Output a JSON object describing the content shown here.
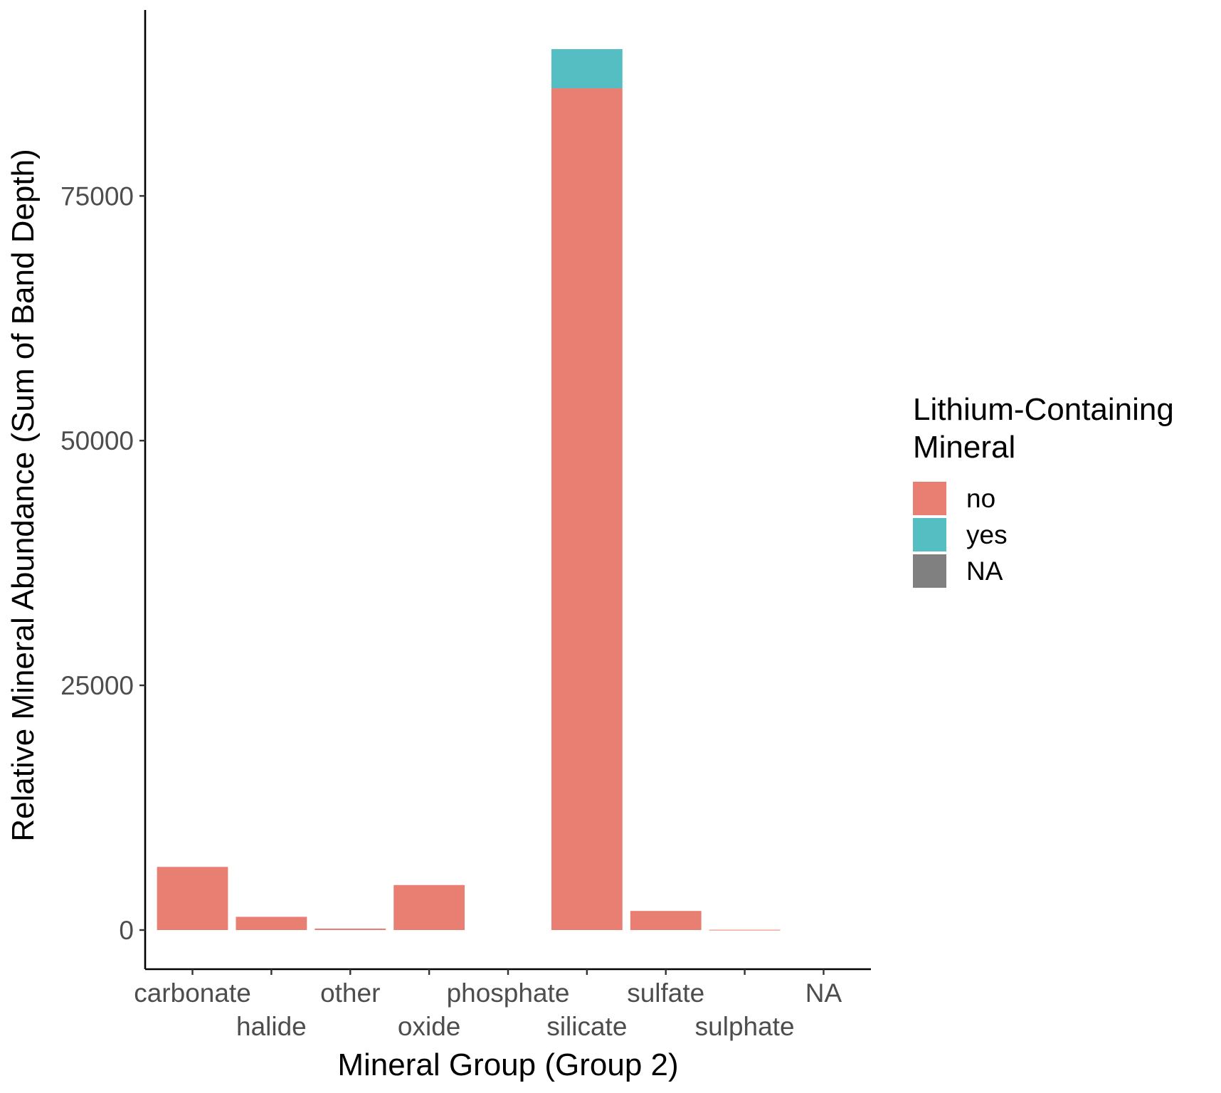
{
  "chart_data": {
    "type": "bar",
    "stacked": true,
    "title": "",
    "xlabel": "Mineral Group (Group 2)",
    "ylabel": "Relative Mineral Abundance (Sum of Band Depth)",
    "categories": [
      "carbonate",
      "halide",
      "other",
      "oxide",
      "phosphate",
      "silicate",
      "sulfate",
      "sulphate",
      "NA"
    ],
    "series": [
      {
        "name": "no",
        "color": "#E87F72",
        "values": [
          6450,
          1350,
          150,
          4600,
          0,
          86000,
          1950,
          30,
          0
        ]
      },
      {
        "name": "yes",
        "color": "#55BEC2",
        "values": [
          0,
          0,
          0,
          0,
          0,
          4000,
          0,
          0,
          0
        ]
      },
      {
        "name": "NA",
        "color": "#808080",
        "values": [
          0,
          0,
          0,
          0,
          0,
          0,
          0,
          0,
          0
        ]
      }
    ],
    "ylim": [
      -4000,
      94000
    ],
    "yticks": [
      0,
      25000,
      50000,
      75000
    ],
    "ytick_labels": [
      "0",
      "25000",
      "50000",
      "75000"
    ],
    "grid": false,
    "legend": {
      "title_lines": [
        "Lithium-Containing",
        "Mineral"
      ],
      "placement": "right"
    }
  }
}
